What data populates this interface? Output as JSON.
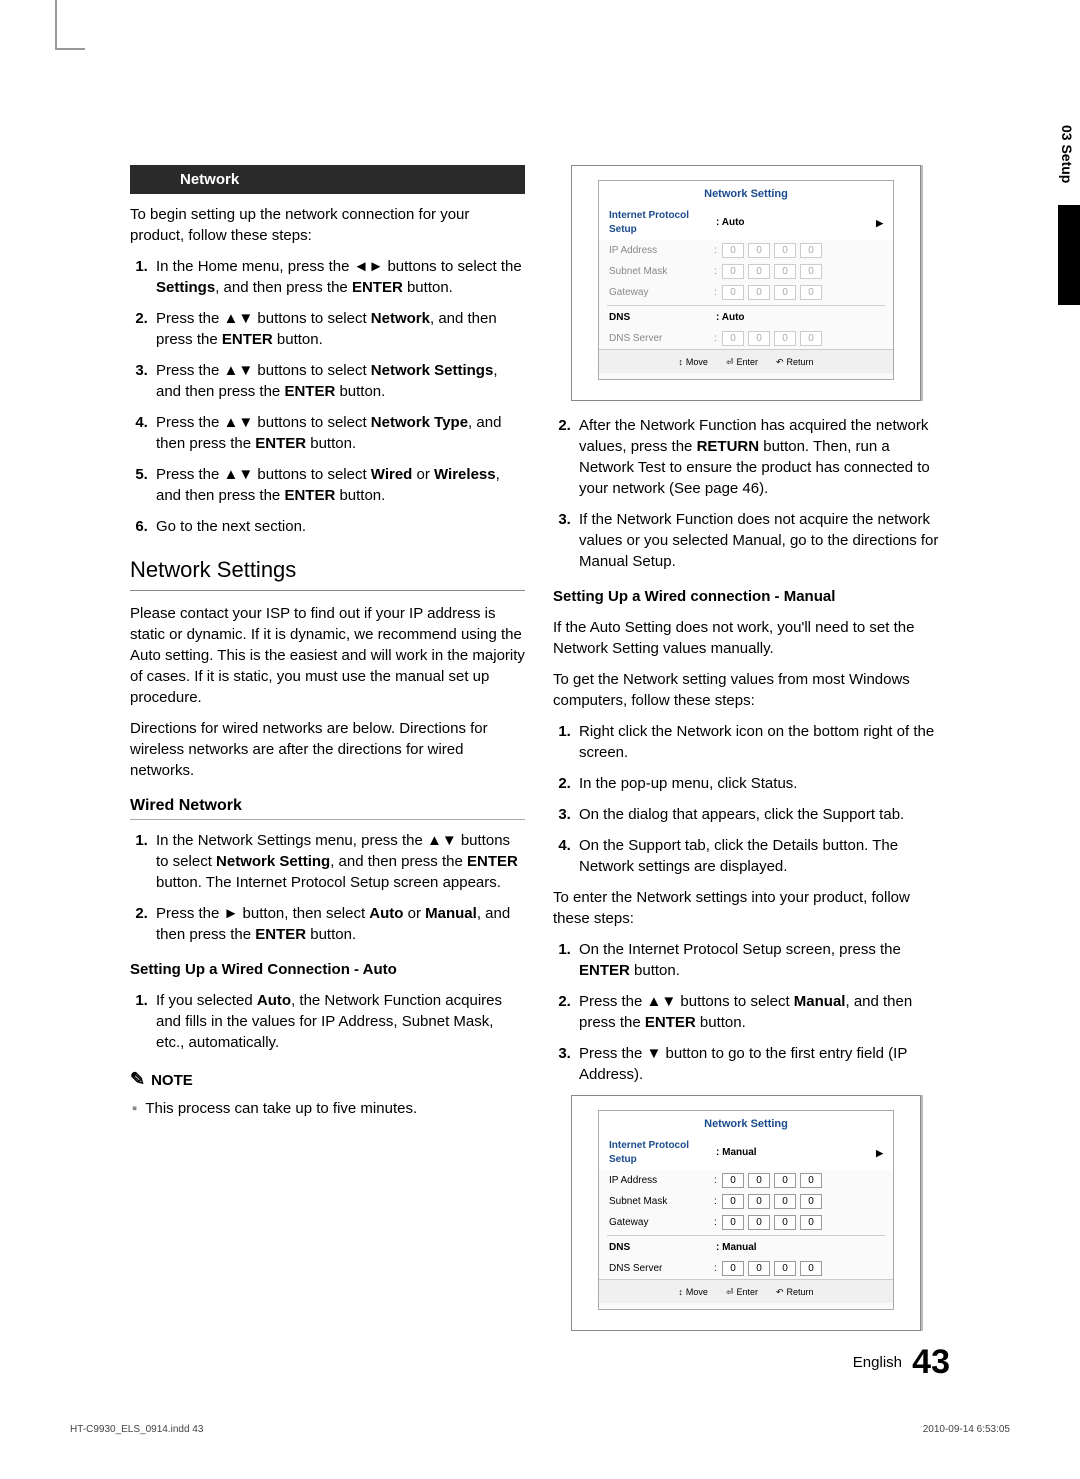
{
  "sideTab": "03  Setup",
  "header": "Network",
  "intro": "To begin setting up the network connection for your product, follow these steps:",
  "steps1": [
    "In the Home menu, press the ◄► buttons to select the |Settings|, and then press the |ENTER| button.",
    "Press the ▲▼ buttons to select |Network|, and then press the |ENTER| button.",
    "Press the ▲▼ buttons to select |Network Settings|, and then press the |ENTER| button.",
    "Press the ▲▼ buttons to select |Network Type|, and then press the |ENTER| button.",
    "Press the ▲▼ buttons to select |Wired| or |Wireless|, and then press the |ENTER| button.",
    "Go to the next section."
  ],
  "h2": "Network Settings",
  "nsPara1": "Please contact your ISP to find out if your IP address is static or dynamic. If it is dynamic, we recommend using the Auto setting. This is the easiest and will work in the majority of cases. If it is static, you must use the manual set up procedure.",
  "nsPara2": "Directions for wired networks are below. Directions for wireless networks are after the directions for wired networks.",
  "h3Wired": "Wired Network",
  "wiredSteps": [
    "In the Network Settings menu, press the ▲▼ buttons to select |Network Setting|, and then press the |ENTER| button. The Internet Protocol Setup screen appears.",
    "Press the ► button, then select |Auto| or |Manual|, and then press the |ENTER| button."
  ],
  "h4Auto": "Setting Up a Wired Connection - Auto",
  "autoSteps": [
    "If you selected |Auto|, the Network Function acquires and fills in the values for IP Address, Subnet Mask, etc., automatically."
  ],
  "noteLabel": "NOTE",
  "noteText": "This process can take up to five minutes.",
  "col2Steps": [
    "After the Network Function has acquired the network values, press the |RETURN| button. Then, run a Network Test to ensure the product has connected to your network (See page 46).",
    "If the Network Function does not acquire the network values or you selected Manual, go to the directions for Manual Setup."
  ],
  "h4Manual": "Setting Up a Wired connection - Manual",
  "manualIntro1": "If the Auto Setting does not work, you'll need to set the Network Setting values manually.",
  "manualIntro2": "To get the Network setting values from most Windows computers, follow these steps:",
  "manualStepsA": [
    "Right click the Network icon on the bottom right of the screen.",
    "In the pop-up menu, click Status.",
    "On the dialog that appears, click the Support tab.",
    "On the Support tab, click the Details button. The Network settings are displayed."
  ],
  "manualIntro3": "To enter the Network settings into your product, follow these steps:",
  "manualStepsB": [
    "On the Internet Protocol Setup screen, press the |ENTER| button.",
    "Press the ▲▼ buttons to select |Manual|, and then press the |ENTER| button.",
    "Press the ▼ button to go to the first entry field (IP Address)."
  ],
  "nsBox1": {
    "title": "Network Setting",
    "rows": [
      {
        "label": "Internet Protocol Setup",
        "type": "select",
        "value": ": Auto",
        "highlight": true,
        "arrow": true
      },
      {
        "label": "IP Address",
        "type": "octets",
        "values": [
          "0",
          "0",
          "0",
          "0"
        ],
        "dim": true
      },
      {
        "label": "Subnet Mask",
        "type": "octets",
        "values": [
          "0",
          "0",
          "0",
          "0"
        ],
        "dim": true
      },
      {
        "label": "Gateway",
        "type": "octets",
        "values": [
          "0",
          "0",
          "0",
          "0"
        ],
        "dim": true
      },
      {
        "label": "DNS",
        "type": "text",
        "value": ": Auto",
        "bold": true
      },
      {
        "label": "DNS Server",
        "type": "octets",
        "values": [
          "0",
          "0",
          "0",
          "0"
        ],
        "dim": true
      }
    ],
    "footer": [
      "> Move",
      "Enter",
      "Return"
    ]
  },
  "nsBox2": {
    "title": "Network Setting",
    "rows": [
      {
        "label": "Internet Protocol Setup",
        "type": "select",
        "value": ": Manual",
        "highlight": true,
        "arrow": true
      },
      {
        "label": "IP Address",
        "type": "octets",
        "values": [
          "0",
          "0",
          "0",
          "0"
        ]
      },
      {
        "label": "Subnet Mask",
        "type": "octets",
        "values": [
          "0",
          "0",
          "0",
          "0"
        ]
      },
      {
        "label": "Gateway",
        "type": "octets",
        "values": [
          "0",
          "0",
          "0",
          "0"
        ]
      },
      {
        "label": "DNS",
        "type": "text",
        "value": ": Manual",
        "bold": true
      },
      {
        "label": "DNS Server",
        "type": "octets",
        "values": [
          "0",
          "0",
          "0",
          "0"
        ]
      }
    ],
    "footer": [
      "> Move",
      "Enter",
      "Return"
    ]
  },
  "footerLang": "English",
  "footerPage": "43",
  "printLeft": "HT-C9930_ELS_0914.indd   43",
  "printRight": "2010-09-14     6:53:05"
}
